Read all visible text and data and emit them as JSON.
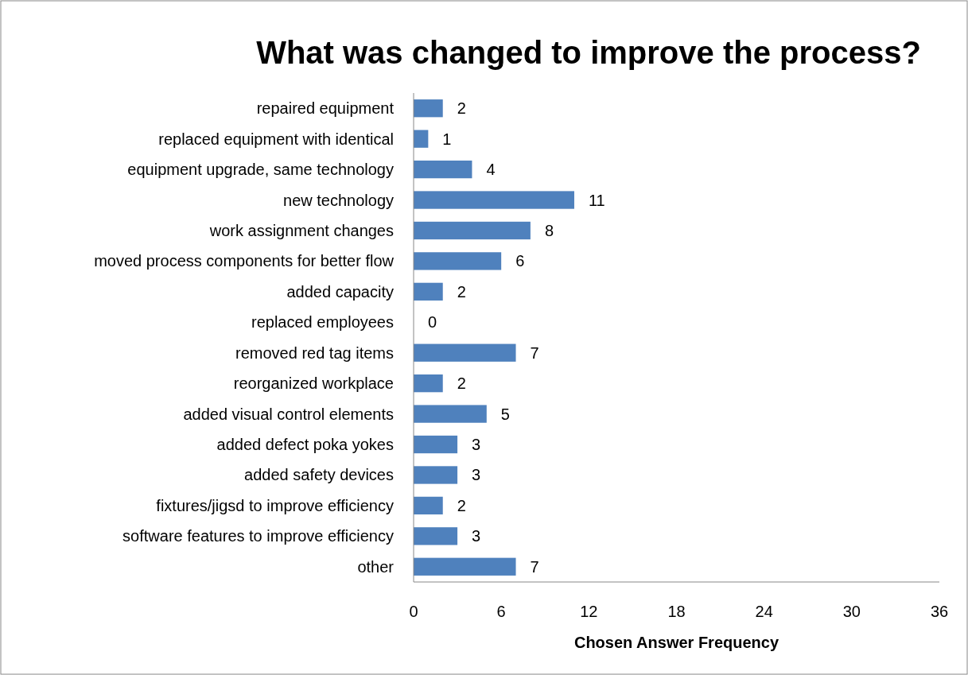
{
  "chart_data": {
    "type": "bar",
    "orientation": "horizontal",
    "title": "What was changed to improve the process?",
    "xlabel": "Chosen Answer Frequency",
    "categories": [
      "repaired equipment",
      "replaced equipment with identical",
      "equipment upgrade, same technology",
      "new technology",
      "work assignment changes",
      "moved process components for better flow",
      "added capacity",
      "replaced employees",
      "removed red tag items",
      "reorganized workplace",
      "added visual control elements",
      "added defect poka yokes",
      "added safety devices",
      "fixtures/jigsd to improve efficiency",
      "software features to improve efficiency",
      "other"
    ],
    "values": [
      2,
      1,
      4,
      11,
      8,
      6,
      2,
      0,
      7,
      2,
      5,
      3,
      3,
      2,
      3,
      7
    ],
    "color": "#4f81bd",
    "xlim": [
      0,
      36
    ],
    "xticks": [
      0,
      6,
      12,
      18,
      24,
      30,
      36
    ],
    "data_labels": true
  }
}
